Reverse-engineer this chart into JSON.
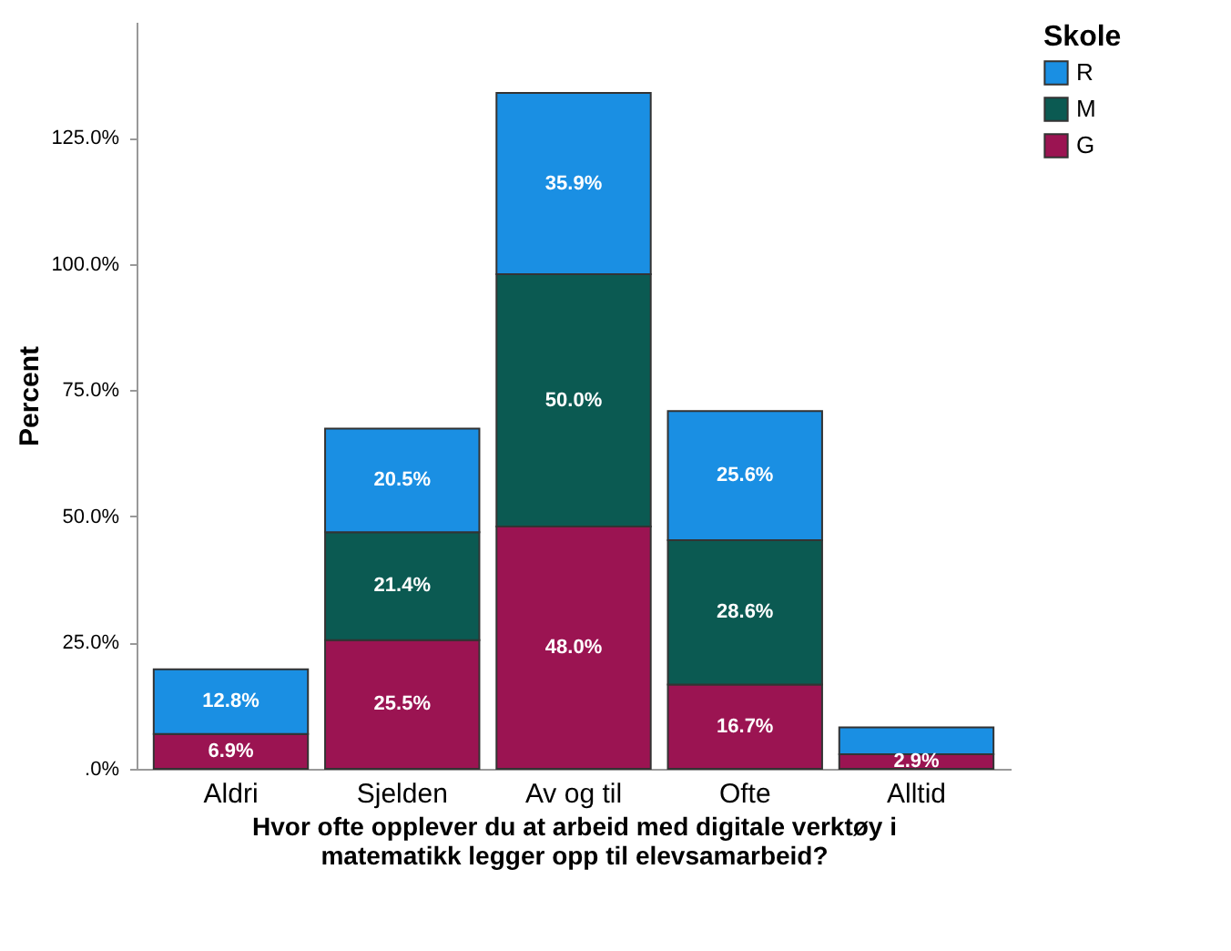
{
  "chart_data": {
    "type": "bar",
    "stacked": true,
    "xlabel": "Hvor ofte opplever du at arbeid med digitale verktøy i\nmatematikk legger opp til elevsamarbeid?",
    "ylabel": "Percent",
    "legend_title": "Skole",
    "legend": "top right",
    "categories": [
      "Aldri",
      "Sjelden",
      "Av og til",
      "Ofte",
      "Alltid"
    ],
    "series": [
      {
        "name": "G",
        "color": "#9b1452",
        "values": [
          6.9,
          25.5,
          48.0,
          16.7,
          2.9
        ],
        "value_labels": [
          "6.9%",
          "25.5%",
          "48.0%",
          "16.7%",
          "2.9%"
        ]
      },
      {
        "name": "M",
        "color": "#0b5a52",
        "values": [
          0,
          21.4,
          50.0,
          28.6,
          0
        ],
        "value_labels": [
          null,
          "21.4%",
          "50.0%",
          "28.6%",
          null
        ]
      },
      {
        "name": "R",
        "color": "#1a8fe3",
        "values": [
          12.8,
          20.5,
          35.9,
          25.6,
          5.3
        ],
        "value_labels": [
          "12.8%",
          "20.5%",
          "35.9%",
          "25.6%",
          null
        ]
      }
    ],
    "ylim": [
      0,
      148
    ],
    "yticks": [
      {
        "value": 0,
        "label": ".0%"
      },
      {
        "value": 25,
        "label": "25.0%"
      },
      {
        "value": 50,
        "label": "50.0%"
      },
      {
        "value": 75,
        "label": "75.0%"
      },
      {
        "value": 100,
        "label": "100.0%"
      },
      {
        "value": 125,
        "label": "125.0%"
      }
    ]
  }
}
